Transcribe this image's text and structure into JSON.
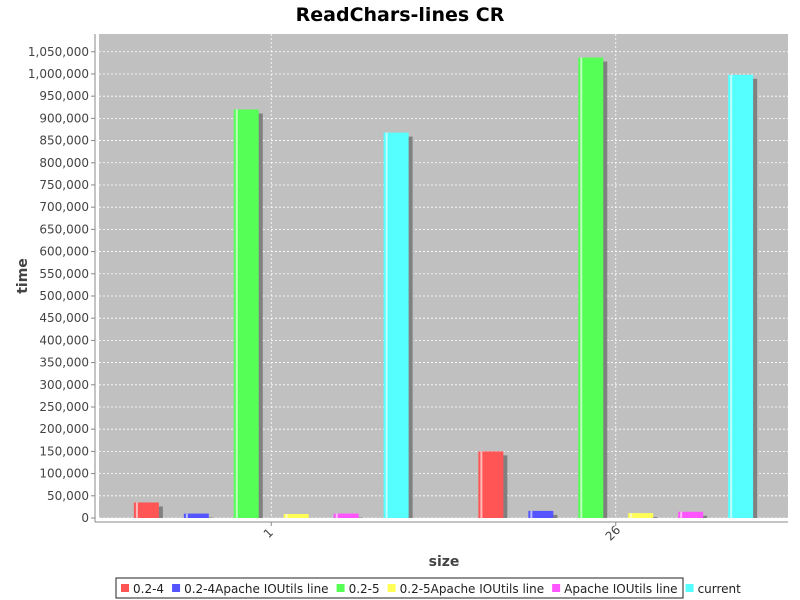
{
  "chart_data": {
    "type": "bar",
    "title": "ReadChars-lines CR",
    "xlabel": "size",
    "ylabel": "time",
    "categories": [
      "1",
      "26"
    ],
    "series": [
      {
        "name": "0.2-4",
        "color": "#ff5555",
        "values": [
          35000,
          150000
        ]
      },
      {
        "name": "0.2-4Apache IOUtils line",
        "color": "#5555ff",
        "values": [
          10000,
          16000
        ]
      },
      {
        "name": "0.2-5",
        "color": "#55ff55",
        "values": [
          920000,
          1037000
        ]
      },
      {
        "name": "0.2-5Apache IOUtils line",
        "color": "#ffff55",
        "values": [
          9000,
          11000
        ]
      },
      {
        "name": "Apache IOUtils line",
        "color": "#ff55ff",
        "values": [
          10000,
          14000
        ]
      },
      {
        "name": "current",
        "color": "#55ffff",
        "values": [
          868000,
          998000
        ]
      }
    ],
    "ylim": [
      0,
      1090000
    ],
    "yticks": [
      "0",
      "50,000",
      "100,000",
      "150,000",
      "200,000",
      "250,000",
      "300,000",
      "350,000",
      "400,000",
      "450,000",
      "500,000",
      "550,000",
      "600,000",
      "650,000",
      "700,000",
      "750,000",
      "800,000",
      "850,000",
      "900,000",
      "950,000",
      "1,000,000",
      "1,050,000"
    ],
    "grid": true,
    "legend_position": "bottom",
    "plot_background": "#c0c0c0"
  }
}
